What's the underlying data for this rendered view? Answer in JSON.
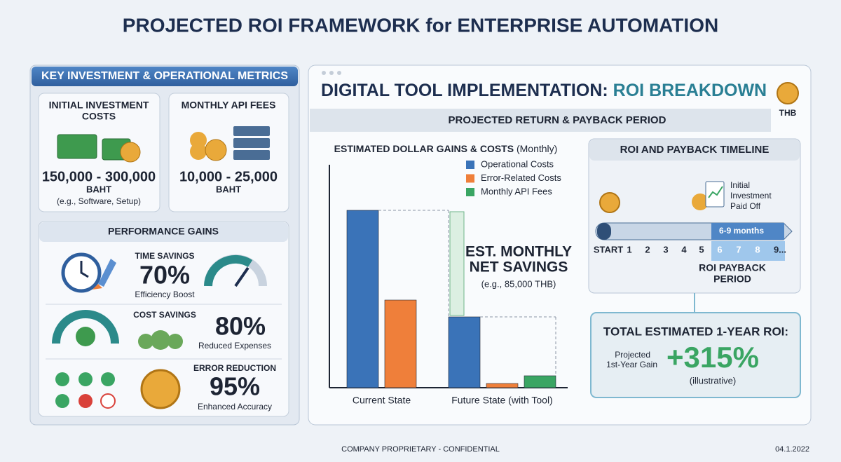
{
  "header": {
    "title": "PROJECTED ROI FRAMEWORK for ENTERPRISE AUTOMATION"
  },
  "left_panel": {
    "title": "KEY INVESTMENT & OPERATIONAL METRICS",
    "cards": [
      {
        "title": [
          "INITIAL INVESTMENT",
          "COSTS"
        ],
        "amount": "150,000 - 300,000",
        "unit": "BAHT",
        "note": "(e.g., Software, Setup)"
      },
      {
        "title": [
          "MONTHLY API FEES"
        ],
        "amount": "10,000 - 25,000",
        "unit": "BAHT"
      }
    ],
    "performance": {
      "title": "PERFORMANCE GAINS",
      "rows": [
        {
          "label": "TIME SAVINGS",
          "value": "70%",
          "caption": "Efficiency Boost"
        },
        {
          "label": "COST SAVINGS",
          "value": "80%",
          "caption": "Reduced Expenses"
        },
        {
          "label": "ERROR REDUCTION",
          "value": "95%",
          "caption": "Enhanced Accuracy"
        }
      ]
    }
  },
  "right_panel": {
    "title_a": "DIGITAL TOOL IMPLEMENTATION:",
    "title_b": "ROI BREAKDOWN",
    "badge": "THB",
    "band": "PROJECTED RETURN & PAYBACK PERIOD",
    "annotation": {
      "lines": [
        "EST. MONTHLY",
        "NET SAVINGS"
      ],
      "note": "(e.g., 85,000 THB)"
    },
    "timeline": {
      "title": "ROI AND PAYBACK TIMELINE",
      "milestone": [
        "Initial",
        "Investment",
        "Paid Off"
      ],
      "range": "6-9 months",
      "steps": [
        "START",
        "1",
        "2",
        "3",
        "4",
        "5",
        "6",
        "7",
        "8",
        "9..."
      ],
      "period": [
        "ROI PAYBACK",
        "PERIOD"
      ]
    },
    "roi": {
      "title": "TOTAL ESTIMATED 1-YEAR ROI:",
      "label": [
        "Projected",
        "1st-Year Gain"
      ],
      "value": "+315%",
      "note": "(illustrative)"
    }
  },
  "chart_data": {
    "type": "bar",
    "title": "ESTIMATED DOLLAR GAINS & COSTS",
    "subtitle": "(Monthly)",
    "categories": [
      "Current State",
      "Future State (with Tool)"
    ],
    "series": [
      {
        "name": "Operational Costs",
        "color": "#3a73b8",
        "values": [
          253,
          101
        ]
      },
      {
        "name": "Error-Related Costs",
        "color": "#ef7f3a",
        "values": [
          125,
          6
        ]
      },
      {
        "name": "Monthly API Fees",
        "color": "#3aa563",
        "values": [
          null,
          17
        ]
      }
    ],
    "ylim": [
      0,
      270
    ]
  },
  "footer": {
    "left": "COMPANY PROPRIETARY - CONFIDENTIAL",
    "right": "04.1.2022"
  }
}
